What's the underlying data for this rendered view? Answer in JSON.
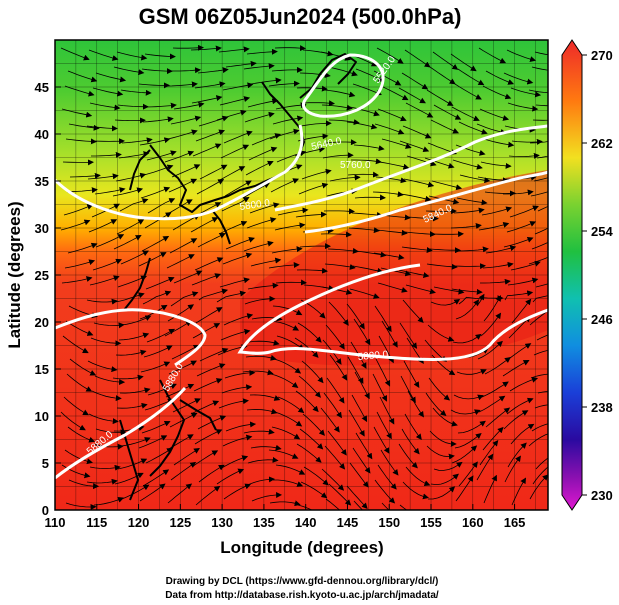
{
  "title": "GSM 06Z05Jun2024 (500.0hPa)",
  "x_axis": {
    "label": "Longitude (degrees)",
    "range": [
      110,
      169
    ],
    "ticks": [
      "110",
      "115",
      "120",
      "125",
      "130",
      "135",
      "140",
      "145",
      "150",
      "155",
      "160",
      "165"
    ]
  },
  "y_axis": {
    "label": "Latitude  (degrees)",
    "range": [
      0,
      50
    ],
    "ticks": [
      "0",
      "5",
      "10",
      "15",
      "20",
      "25",
      "30",
      "35",
      "40",
      "45"
    ]
  },
  "colorbar": {
    "min": 230,
    "max": 270,
    "labels": [
      "270",
      "262",
      "254",
      "246",
      "238",
      "230"
    ]
  },
  "contour_labels": [
    "5520.0",
    "5640.0",
    "5760.0",
    "5800.0",
    "5840.0",
    "5880.0",
    "5880.0",
    "5880.0"
  ],
  "credits": {
    "line1": "Drawing by DCL (https://www.gfd-dennou.org/library/dcl/)",
    "line2": "Data from http://database.rish.kyoto-u.ac.jp/arch/jmadata/"
  }
}
